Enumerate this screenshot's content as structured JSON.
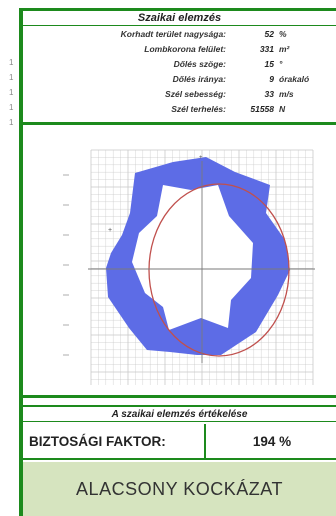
{
  "header": {
    "title": "Szaikai elemzés"
  },
  "params": [
    {
      "label": "Korhadt terület nagysága:",
      "value": "52",
      "unit": "%"
    },
    {
      "label": "Lombkorona felület:",
      "value": "331",
      "unit": "m²"
    },
    {
      "label": "Dőlés szöge:",
      "value": "15",
      "unit": "°"
    },
    {
      "label": "Dőlés iránya:",
      "value": "9",
      "unit": "órakaló"
    },
    {
      "label": "Szél sebesség:",
      "value": "33",
      "unit": "m/s"
    },
    {
      "label": "Szél terhelés:",
      "value": "51558",
      "unit": "N"
    }
  ],
  "left_ticks": [
    "1",
    "1",
    "1",
    "1",
    "1"
  ],
  "chart": {
    "shape_color": "#5d6ce6",
    "circle_color": "#c0504d",
    "grid_color": "#c9c9c9"
  },
  "evaluation": {
    "title": "A szaikai elemzés értékelése",
    "factor_label": "BIZTOSÁGI FAKTOR:",
    "factor_value": "194 %",
    "risk_label": "ALACSONY KOCKÁZAT",
    "risk_bg": "#d6e4bf"
  }
}
